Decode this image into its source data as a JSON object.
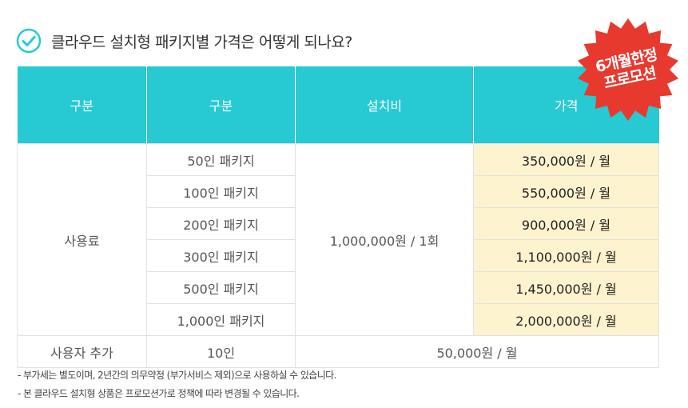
{
  "title": "클라우드 설치형 패키지별 가격은 어떻게 되나요?",
  "badge": {
    "line1": "6개월한정",
    "line2": "프로모션",
    "color": "#e8392f"
  },
  "accent_color": "#27c9d3",
  "price_bg": "#fdf3cf",
  "table": {
    "headers": [
      "구분",
      "구분",
      "설치비",
      "가격"
    ],
    "usage_label": "사용료",
    "install_fee": "1,000,000원 / 1회",
    "rows": [
      {
        "package": "50인 패키지",
        "price": "350,000원 / 월"
      },
      {
        "package": "100인 패키지",
        "price": "550,000원 / 월"
      },
      {
        "package": "200인 패키지",
        "price": "900,000원 / 월"
      },
      {
        "package": "300인 패키지",
        "price": "1,100,000원 / 월"
      },
      {
        "package": "500인 패키지",
        "price": "1,450,000원 / 월"
      },
      {
        "package": "1,000인 패키지",
        "price": "2,000,000원 / 월"
      }
    ],
    "addon": {
      "label": "사용자 추가",
      "unit": "10인",
      "price": "50,000원 / 월"
    }
  },
  "notes": [
    "- 부가세는 별도이며, 2년간의 의무약정 (부가서비스 제외)으로 사용하실 수 있습니다.",
    "- 본 클라우드 설치형 상품은 프로모션가로 정책에 따라 변경될 수 있습니다."
  ]
}
